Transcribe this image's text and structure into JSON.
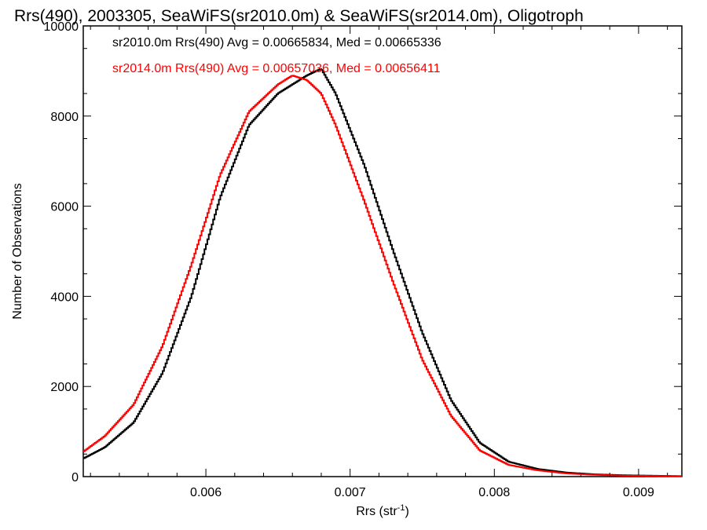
{
  "chart_data": {
    "type": "line",
    "title": "Rrs(490), 2003305, SeaWiFS(sr2010.0m) & SeaWiFS(sr2014.0m), Oligotroph",
    "xlabel": "Rrs (str",
    "xlabel_sup": "-1",
    "xlabel_end": ")",
    "ylabel": "Number of Observations",
    "xlim": [
      0.00515,
      0.0093
    ],
    "ylim": [
      0,
      10000
    ],
    "x_ticks": [
      0.006,
      0.007,
      0.008,
      0.009
    ],
    "x_tick_labels": [
      "0.006",
      "0.007",
      "0.008",
      "0.009"
    ],
    "y_ticks": [
      0,
      2000,
      4000,
      6000,
      8000,
      10000
    ],
    "y_tick_labels": [
      "0",
      "2000",
      "4000",
      "6000",
      "8000",
      "10000"
    ],
    "grid": false,
    "legend_position": "top-left",
    "series": [
      {
        "name": "sr2010.0m Rrs(490) Avg = 0.00665834, Med = 0.00665336",
        "color": "#000000",
        "x": [
          0.00515,
          0.0053,
          0.0055,
          0.0057,
          0.0059,
          0.0061,
          0.0063,
          0.0065,
          0.0066,
          0.0067,
          0.0068,
          0.0069,
          0.0071,
          0.0073,
          0.0075,
          0.0077,
          0.0079,
          0.0081,
          0.0083,
          0.0085,
          0.0087,
          0.0089,
          0.0093
        ],
        "values": [
          400,
          650,
          1200,
          2300,
          4000,
          6200,
          7800,
          8500,
          8700,
          8900,
          9050,
          8500,
          6900,
          5000,
          3200,
          1700,
          750,
          330,
          170,
          90,
          50,
          30,
          10
        ]
      },
      {
        "name": "sr2014.0m Rrs(490) Avg = 0.00657036, Med = 0.00656411",
        "color": "#ff0000",
        "x": [
          0.00515,
          0.0053,
          0.0055,
          0.0057,
          0.0059,
          0.0061,
          0.0063,
          0.0065,
          0.0066,
          0.0067,
          0.0068,
          0.0069,
          0.0071,
          0.0073,
          0.0075,
          0.0077,
          0.0079,
          0.0081,
          0.0083,
          0.0085,
          0.0087,
          0.0089,
          0.0093
        ],
        "values": [
          550,
          900,
          1600,
          2900,
          4700,
          6700,
          8100,
          8700,
          8900,
          8800,
          8500,
          7800,
          6100,
          4300,
          2600,
          1350,
          580,
          260,
          140,
          70,
          40,
          20,
          10
        ]
      }
    ]
  }
}
